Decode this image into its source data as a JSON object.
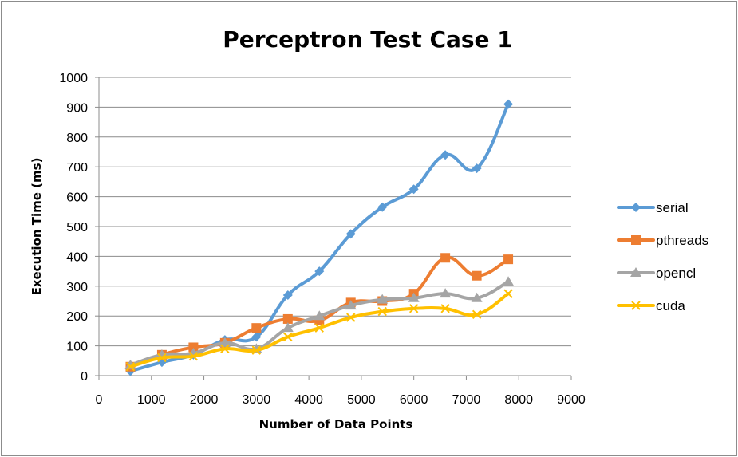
{
  "chart_data": {
    "type": "line",
    "title": "Perceptron Test Case 1",
    "xlabel": "Number of Data Points",
    "ylabel": "Execution Time (ms)",
    "xlim": [
      0,
      9000
    ],
    "ylim": [
      0,
      1000
    ],
    "x_ticks": [
      0,
      1000,
      2000,
      3000,
      4000,
      5000,
      6000,
      7000,
      8000,
      9000
    ],
    "y_ticks": [
      0,
      100,
      200,
      300,
      400,
      500,
      600,
      700,
      800,
      900,
      1000
    ],
    "grid": "horizontal",
    "legend_position": "right",
    "x": [
      600,
      1200,
      1800,
      2400,
      3000,
      3600,
      4200,
      4800,
      5400,
      6000,
      6600,
      7200,
      7800
    ],
    "series": [
      {
        "name": "serial",
        "color": "#5B9BD5",
        "marker": "diamond",
        "values": [
          15,
          45,
          70,
          120,
          130,
          270,
          350,
          475,
          565,
          625,
          740,
          695,
          910
        ]
      },
      {
        "name": "pthreads",
        "color": "#ED7D31",
        "marker": "square",
        "values": [
          30,
          70,
          95,
          110,
          160,
          190,
          185,
          245,
          250,
          275,
          395,
          335,
          390
        ]
      },
      {
        "name": "opencl",
        "color": "#A5A5A5",
        "marker": "triangle",
        "values": [
          35,
          70,
          75,
          110,
          90,
          160,
          200,
          235,
          255,
          260,
          275,
          260,
          315
        ]
      },
      {
        "name": "cuda",
        "color": "#FFC000",
        "marker": "x",
        "values": [
          30,
          60,
          65,
          90,
          85,
          130,
          160,
          195,
          215,
          225,
          225,
          205,
          275
        ]
      }
    ]
  }
}
